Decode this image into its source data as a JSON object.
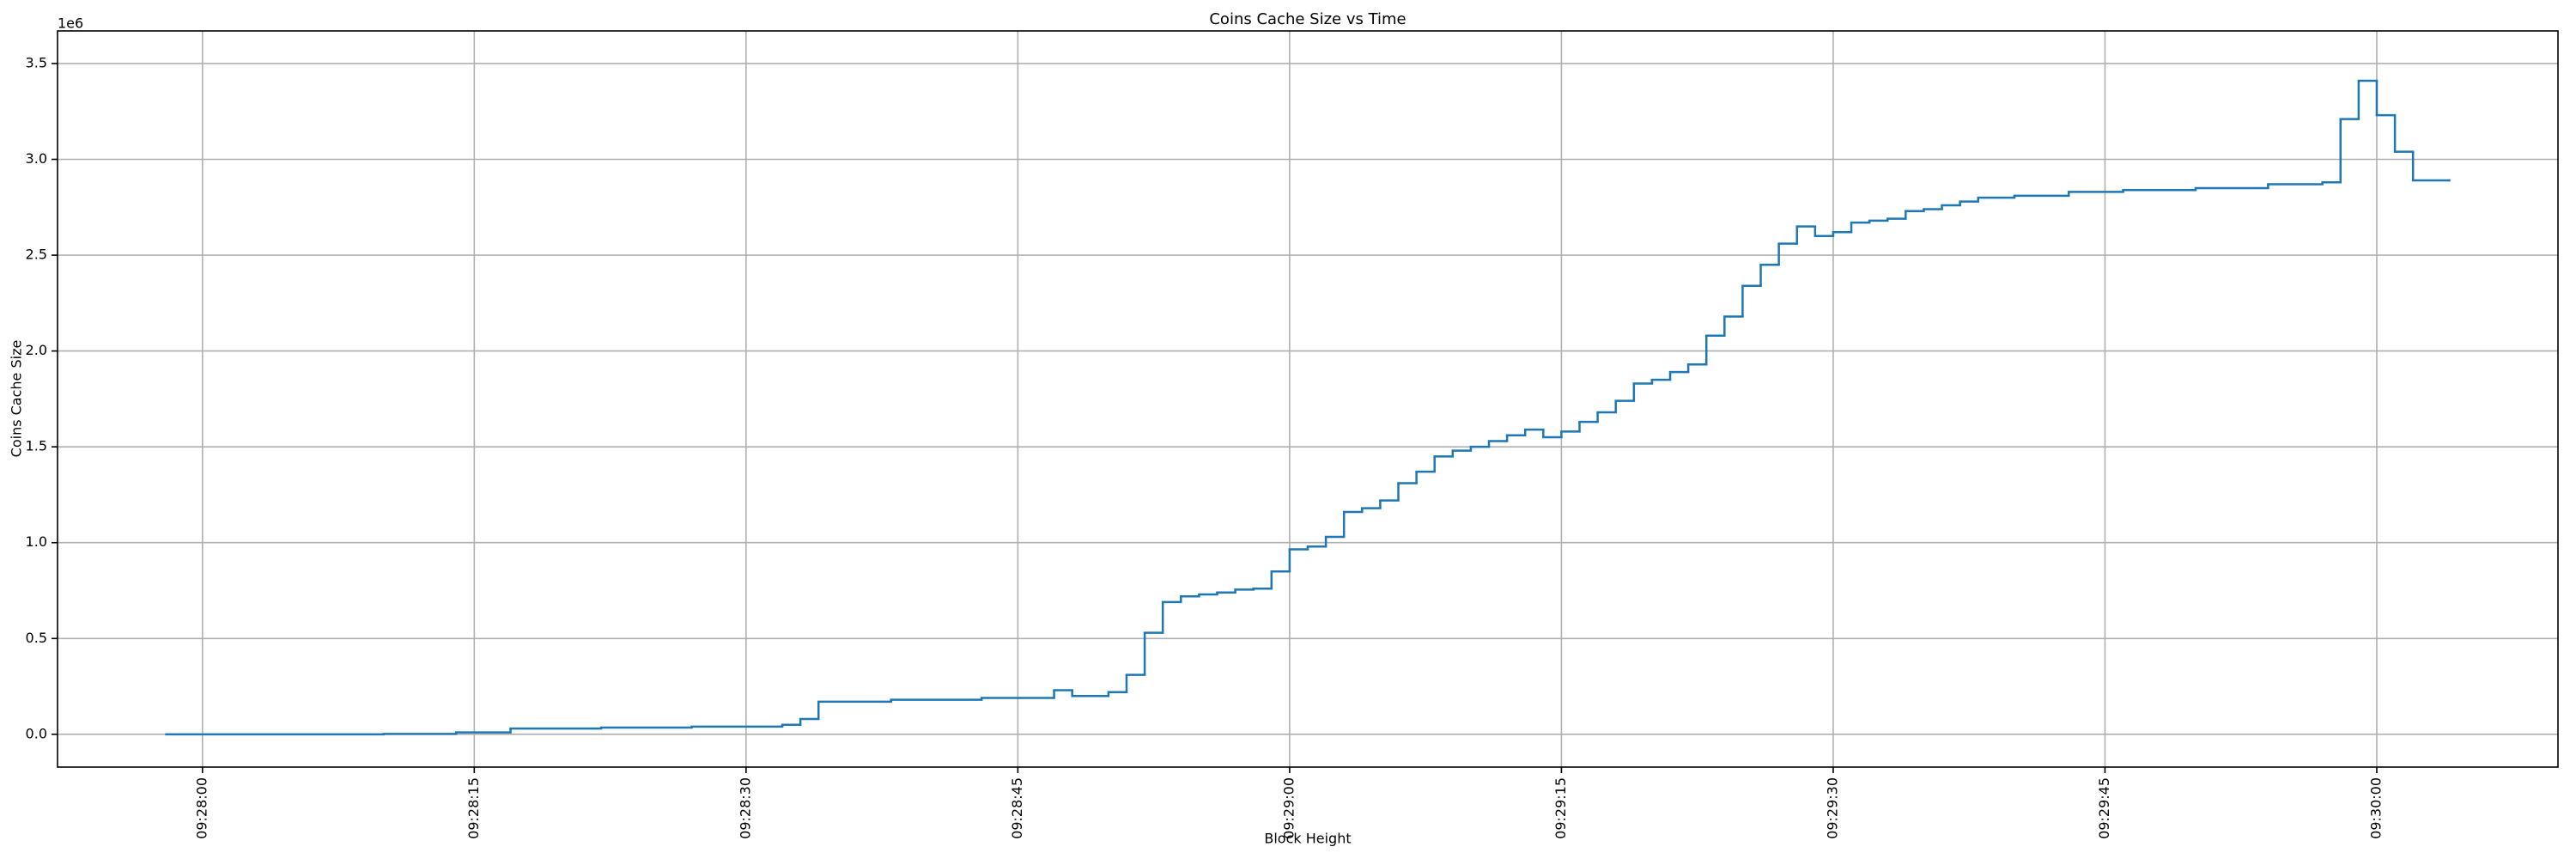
{
  "chart_data": {
    "type": "step",
    "title": "Coins Cache Size vs Time",
    "x_label": "Block Height",
    "y_label": "Coins Cache Size",
    "y_offset_label": "1e6",
    "series": [
      {
        "color": "#1f77b4",
        "x": [
          "09:27:58",
          "09:28:10",
          "09:28:14",
          "09:28:17",
          "09:28:22",
          "09:28:27",
          "09:28:32",
          "09:28:33",
          "09:28:34",
          "09:28:38",
          "09:28:43",
          "09:28:47",
          "09:28:48",
          "09:28:50",
          "09:28:51",
          "09:28:52",
          "09:28:53",
          "09:28:54",
          "09:28:55",
          "09:28:56",
          "09:28:57",
          "09:28:58",
          "09:28:59",
          "09:29:00",
          "09:29:01",
          "09:29:02",
          "09:29:03",
          "09:29:04",
          "09:29:05",
          "09:29:06",
          "09:29:07",
          "09:29:08",
          "09:29:09",
          "09:29:10",
          "09:29:11",
          "09:29:12",
          "09:29:13",
          "09:29:14",
          "09:29:15",
          "09:29:16",
          "09:29:17",
          "09:29:18",
          "09:29:19",
          "09:29:20",
          "09:29:21",
          "09:29:22",
          "09:29:23",
          "09:29:24",
          "09:29:25",
          "09:29:26",
          "09:29:27",
          "09:29:28",
          "09:29:29",
          "09:29:30",
          "09:29:31",
          "09:29:32",
          "09:29:33",
          "09:29:34",
          "09:29:35",
          "09:29:36",
          "09:29:37",
          "09:29:38",
          "09:29:40",
          "09:29:43",
          "09:29:46",
          "09:29:50",
          "09:29:54",
          "09:29:57",
          "09:29:58",
          "09:29:59",
          "09:30:00",
          "09:30:01",
          "09:30:02",
          "09:30:04"
        ],
        "values": [
          0,
          2000,
          10000,
          30000,
          35000,
          40000,
          50000,
          80000,
          170000,
          180000,
          190000,
          230000,
          200000,
          220000,
          310000,
          530000,
          690000,
          720000,
          730000,
          740000,
          755000,
          760000,
          850000,
          965000,
          980000,
          1030000,
          1160000,
          1180000,
          1220000,
          1310000,
          1370000,
          1450000,
          1480000,
          1500000,
          1530000,
          1560000,
          1590000,
          1550000,
          1580000,
          1630000,
          1680000,
          1740000,
          1830000,
          1850000,
          1890000,
          1930000,
          2080000,
          2180000,
          2340000,
          2450000,
          2560000,
          2650000,
          2600000,
          2620000,
          2670000,
          2680000,
          2690000,
          2730000,
          2740000,
          2760000,
          2780000,
          2800000,
          2810000,
          2830000,
          2840000,
          2850000,
          2870000,
          2880000,
          3210000,
          3410000,
          3230000,
          3040000,
          2890000,
          2890000
        ]
      }
    ],
    "xlim": [
      "09:27:52",
      "09:30:10"
    ],
    "xticks": [
      "09:28:00",
      "09:28:15",
      "09:28:30",
      "09:28:45",
      "09:29:00",
      "09:29:15",
      "09:29:30",
      "09:29:45",
      "09:30:00"
    ],
    "ylim": [
      -171000,
      3670000
    ],
    "yticks": [
      {
        "value": 0,
        "label": "0.0"
      },
      {
        "value": 500000,
        "label": "0.5"
      },
      {
        "value": 1000000,
        "label": "1.0"
      },
      {
        "value": 1500000,
        "label": "1.5"
      },
      {
        "value": 2000000,
        "label": "2.0"
      },
      {
        "value": 2500000,
        "label": "2.5"
      },
      {
        "value": 3000000,
        "label": "3.0"
      },
      {
        "value": 3500000,
        "label": "3.5"
      }
    ],
    "grid": true
  }
}
